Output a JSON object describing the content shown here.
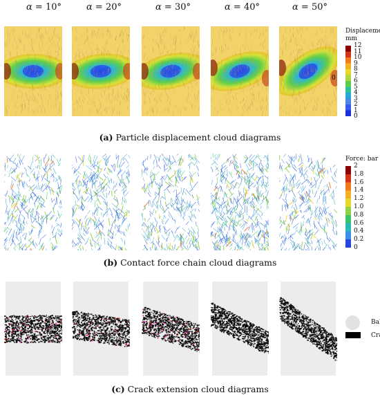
{
  "angles": [
    {
      "prefix": "α = ",
      "value": "10°"
    },
    {
      "prefix": "α = ",
      "value": "20°"
    },
    {
      "prefix": "α = ",
      "value": "30°"
    },
    {
      "prefix": "α = ",
      "value": "40°"
    },
    {
      "prefix": "α = ",
      "value": "50°"
    }
  ],
  "rows": {
    "displacement": {
      "caption_letter": "(a)",
      "caption_text": " Particle displacement cloud diagrams",
      "colorbar": {
        "title_line1": "Displacement:",
        "title_line2": "mm",
        "ticks": [
          "12",
          "11",
          "10",
          "9",
          "8",
          "7",
          "6",
          "5",
          "4",
          "3",
          "2",
          "1",
          "0"
        ],
        "colors": [
          "#8b0000",
          "#d2341a",
          "#f07a1c",
          "#f3b223",
          "#e6d82a",
          "#a9d843",
          "#5ec94a",
          "#2cc29a",
          "#2aa9d6",
          "#4a86e6",
          "#3559e8",
          "#1c2fdc"
        ]
      },
      "side_label": "0"
    },
    "force": {
      "caption_letter": "(b)",
      "caption_text": " Contact force chain cloud diagrams",
      "colorbar": {
        "title": "Force: bar",
        "ticks": [
          "2",
          "1.8",
          "1.6",
          "1.4",
          "1.2",
          "1.0",
          "0.8",
          "0.6",
          "0.4",
          "0.2",
          "0"
        ],
        "colors": [
          "#8b0000",
          "#d2341a",
          "#f07a1c",
          "#f3b223",
          "#e6d82a",
          "#8fd147",
          "#3cc46b",
          "#2bb9b8",
          "#3d8ee6",
          "#2545dd"
        ]
      }
    },
    "crack": {
      "caption_letter": "(c)",
      "caption_text": " Crack extension cloud diagrams",
      "legend": [
        {
          "label": "Ball",
          "color": "#e2e2e2"
        },
        {
          "label": "Crack",
          "color": "#000000"
        }
      ]
    }
  }
}
